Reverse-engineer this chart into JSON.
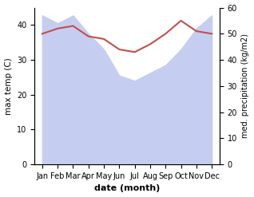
{
  "months": [
    "Jan",
    "Feb",
    "Mar",
    "Apr",
    "May",
    "Jun",
    "Jul",
    "Aug",
    "Sep",
    "Oct",
    "Nov",
    "Dec"
  ],
  "max_temp_right": [
    50,
    52,
    53,
    49,
    48,
    44,
    43,
    46,
    50,
    55,
    51,
    50
  ],
  "precipitation_right": [
    57,
    54,
    57,
    50,
    44,
    34,
    32,
    35,
    38,
    44,
    52,
    57
  ],
  "temp_color": "#c0504d",
  "precip_fill_color": "#c5cef0",
  "left_ylim": [
    0,
    45
  ],
  "right_ylim": [
    0,
    60
  ],
  "left_yticks": [
    0,
    10,
    20,
    30,
    40
  ],
  "right_yticks": [
    0,
    10,
    20,
    30,
    40,
    50,
    60
  ],
  "xlabel": "date (month)",
  "ylabel_left": "max temp (C)",
  "ylabel_right": "med. precipitation (kg/m2)"
}
